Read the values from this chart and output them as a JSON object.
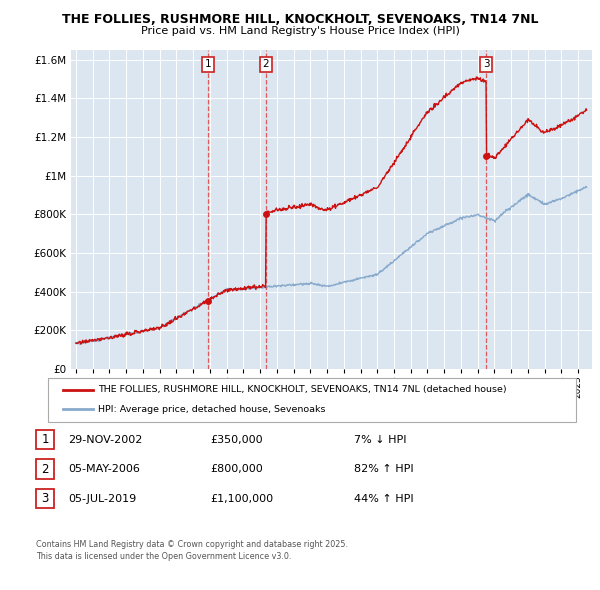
{
  "title1": "THE FOLLIES, RUSHMORE HILL, KNOCKHOLT, SEVENOAKS, TN14 7NL",
  "title2": "Price paid vs. HM Land Registry's House Price Index (HPI)",
  "legend_red": "THE FOLLIES, RUSHMORE HILL, KNOCKHOLT, SEVENOAKS, TN14 7NL (detached house)",
  "legend_blue": "HPI: Average price, detached house, Sevenoaks",
  "footnote1": "Contains HM Land Registry data © Crown copyright and database right 2025.",
  "footnote2": "This data is licensed under the Open Government Licence v3.0.",
  "table": [
    {
      "num": "1",
      "date": "29-NOV-2002",
      "price": "£350,000",
      "change": "7% ↓ HPI"
    },
    {
      "num": "2",
      "date": "05-MAY-2006",
      "price": "£800,000",
      "change": "82% ↑ HPI"
    },
    {
      "num": "3",
      "date": "05-JUL-2019",
      "price": "£1,100,000",
      "change": "44% ↑ HPI"
    }
  ],
  "sale_dates": [
    2002.91,
    2006.34,
    2019.51
  ],
  "sale_prices": [
    350000,
    800000,
    1100000
  ],
  "vline_color": "#dd4444",
  "red_color": "#cc1111",
  "blue_color": "#88aacc",
  "bg_color": "#dce6f0",
  "grid_color": "#ffffff",
  "ylim": [
    0,
    1650000
  ],
  "xlim_start": 1994.7,
  "xlim_end": 2025.8
}
